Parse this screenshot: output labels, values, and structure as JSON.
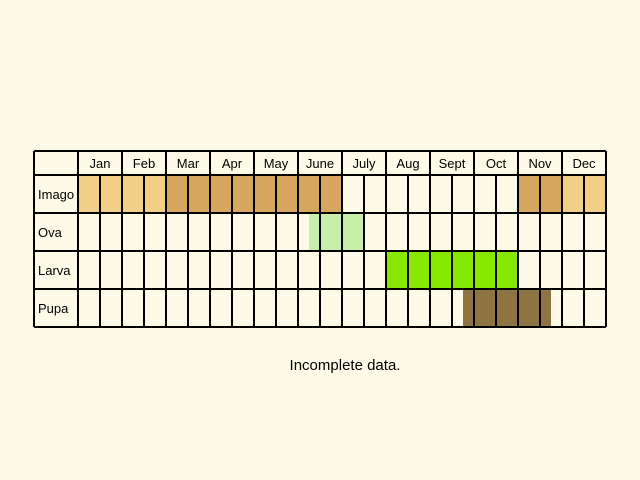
{
  "caption": "Incomplete data.",
  "colors": {
    "background": "#fdfbe8",
    "grid": "#000000",
    "imago_summer": "#d6a55e",
    "imago_winter": "#f2cf86",
    "ova": "#c8efaa",
    "larva": "#88e802",
    "pupa": "#8f7443"
  },
  "chart_data": {
    "type": "table",
    "title": "",
    "columns": [
      "Jan",
      "Feb",
      "Mar",
      "Apr",
      "May",
      "June",
      "July",
      "Aug",
      "Sept",
      "Oct",
      "Nov",
      "Dec"
    ],
    "periods_per_month": 2,
    "rows": [
      {
        "label": "Imago",
        "spans": [
          {
            "start_month": 0,
            "end_month": 2,
            "color": "#f2cf86"
          },
          {
            "start_month": 2,
            "end_month": 6,
            "color": "#d6a55e"
          },
          {
            "start_month": 10,
            "end_month": 11,
            "color": "#d6a55e"
          },
          {
            "start_month": 11,
            "end_month": 12,
            "color": "#f2cf86"
          }
        ]
      },
      {
        "label": "Ova",
        "spans": [
          {
            "start_month": 5.25,
            "end_month": 6.5,
            "color": "#c8efaa"
          }
        ]
      },
      {
        "label": "Larva",
        "spans": [
          {
            "start_month": 7,
            "end_month": 10,
            "color": "#88e802"
          }
        ]
      },
      {
        "label": "Pupa",
        "spans": [
          {
            "start_month": 8.75,
            "end_month": 10.75,
            "color": "#8f7443"
          }
        ]
      }
    ]
  }
}
